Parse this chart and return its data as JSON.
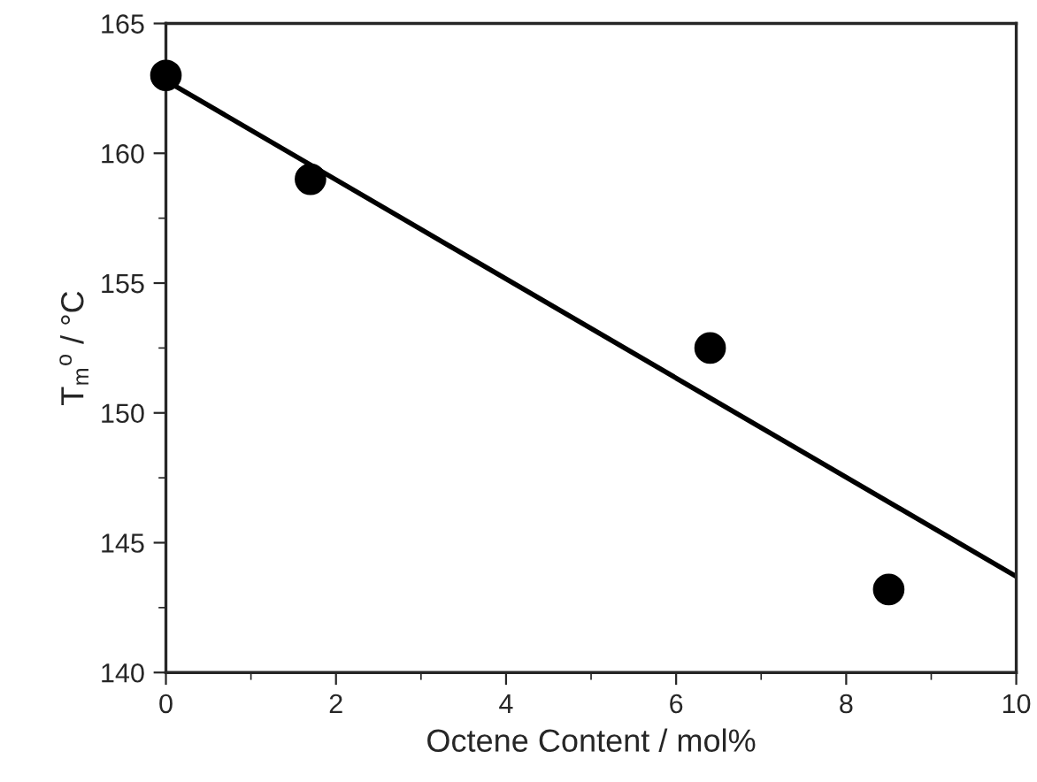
{
  "chart_data": {
    "type": "scatter",
    "xlabel": "Octene Content / mol%",
    "ylabel": "T$_{m}$$^{o}$ / °C",
    "xlim": [
      0,
      10
    ],
    "ylim": [
      140,
      165
    ],
    "xticks": [
      0,
      2,
      4,
      6,
      8,
      10
    ],
    "yticks": [
      140,
      145,
      150,
      155,
      160,
      165
    ],
    "grid": false,
    "legend": false,
    "marker": "circle",
    "series": [
      {
        "color": "#000000",
        "x": [
          0,
          1.7,
          6.4,
          8.5
        ],
        "values": [
          163,
          159.0,
          152.5,
          143.2
        ]
      },
      {
        "type": "line",
        "color": "#000000",
        "x": [
          0,
          10
        ],
        "values": [
          162.8,
          143.7
        ],
        "marker": "none",
        "line_style": "solid"
      }
    ]
  }
}
